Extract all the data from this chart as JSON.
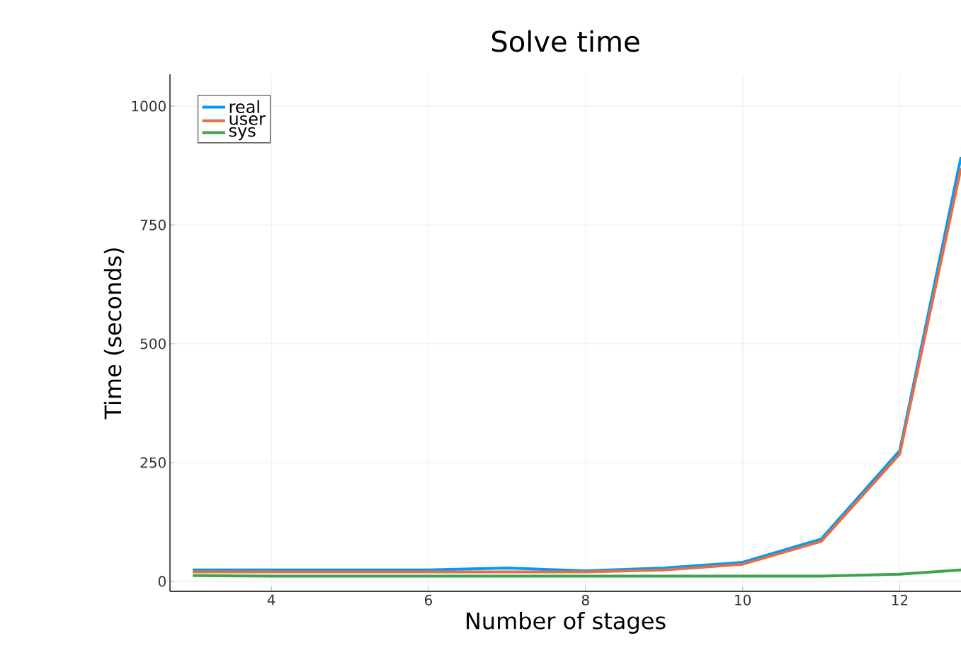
{
  "chart_data": {
    "type": "line",
    "title": "Solve time",
    "xlabel": "Number of stages",
    "ylabel": "Time (seconds)",
    "x": [
      3,
      4,
      5,
      6,
      7,
      8,
      9,
      10,
      11,
      12,
      12.78
    ],
    "series": [
      {
        "name": "real",
        "color": "#009af9",
        "values": [
          24,
          24,
          24,
          24,
          28,
          22,
          28,
          40,
          89,
          275,
          893
        ]
      },
      {
        "name": "user",
        "color": "#e26f46",
        "values": [
          20,
          20,
          20,
          20,
          20,
          20,
          24,
          36,
          84,
          268,
          870
        ]
      },
      {
        "name": "sys",
        "color": "#3da44d",
        "values": [
          12,
          11,
          11,
          11,
          11,
          11,
          11,
          11,
          11,
          15,
          24
        ]
      }
    ],
    "xlim": [
      2.71,
      12.78
    ],
    "ylim": [
      -21,
      1067
    ],
    "xticks": [
      4,
      6,
      8,
      10,
      12
    ],
    "yticks": [
      0,
      250,
      500,
      750,
      1000
    ],
    "grid": true,
    "legend": "top left",
    "marker": "none",
    "line_style": "solid"
  }
}
